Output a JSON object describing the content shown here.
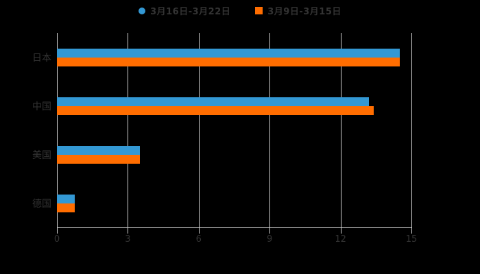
{
  "colors": {
    "background": "#000000",
    "text": "#333333",
    "grid": "#cfcfcf",
    "series1": "#3398d4",
    "series2": "#ff6d00"
  },
  "legend": {
    "items": [
      {
        "label": "3月16日-3月22日",
        "color": "#3398d4",
        "marker": "circle"
      },
      {
        "label": "3月9日-3月15日",
        "color": "#ff6d00",
        "marker": "square"
      }
    ]
  },
  "chart_data": {
    "type": "bar",
    "orientation": "horizontal",
    "title": "",
    "xlabel": "",
    "ylabel": "",
    "categories": [
      "日本",
      "中国",
      "美国",
      "德国"
    ],
    "series": [
      {
        "name": "3月16日-3月22日",
        "color": "#3398d4",
        "values": [
          14.5,
          13.2,
          3.5,
          0.75
        ]
      },
      {
        "name": "3月9日-3月15日",
        "color": "#ff6d00",
        "values": [
          14.5,
          13.4,
          3.5,
          0.75
        ]
      }
    ],
    "xlim": [
      0,
      15
    ],
    "xticks": [
      0,
      3,
      6,
      9,
      12,
      15
    ],
    "grid": true,
    "legend_position": "top"
  }
}
